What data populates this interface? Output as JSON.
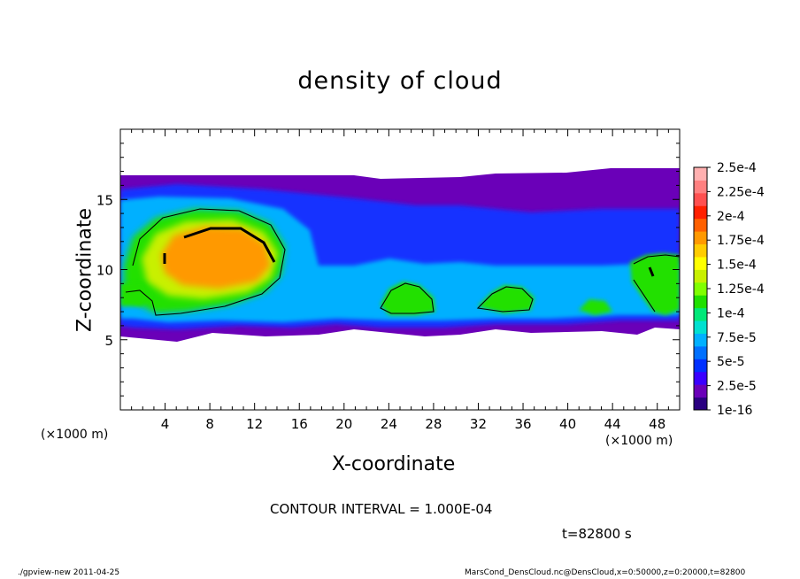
{
  "chart_data": {
    "type": "heatmap",
    "title": "density of cloud",
    "xlabel": "X-coordinate",
    "ylabel": "Z-coordinate",
    "x_unit_label": "(×1000 m)",
    "xlim": [
      0,
      50
    ],
    "ylim": [
      0,
      20
    ],
    "x_ticks": [
      4,
      8,
      12,
      16,
      20,
      24,
      28,
      32,
      36,
      40,
      44,
      48
    ],
    "y_ticks": [
      5,
      10,
      15
    ],
    "colorbar": {
      "labels": [
        "2.5e-4",
        "2.25e-4",
        "2e-4",
        "1.75e-4",
        "1.5e-4",
        "1.25e-4",
        "1e-4",
        "7.5e-5",
        "5e-5",
        "2.5e-5",
        "1e-16"
      ],
      "colors": [
        "#2a0080",
        "#6a00b8",
        "#3a00ff",
        "#0030ff",
        "#0070ff",
        "#00b0ff",
        "#00e0d0",
        "#00e878",
        "#20e000",
        "#80ff00",
        "#c8f000",
        "#ffff00",
        "#ffcc00",
        "#ff9900",
        "#ff6000",
        "#ff2000",
        "#ff5050",
        "#ff8080",
        "#ffb0b0"
      ]
    },
    "contour_interval": "CONTOUR INTERVAL = 1.000E-04",
    "time": "t=82800 s"
  },
  "footer": {
    "left": "./gpview-new  2011-04-25",
    "right": "MarsCond_DensCloud.nc@DensCloud,x=0:50000,z=0:20000,t=82800"
  }
}
